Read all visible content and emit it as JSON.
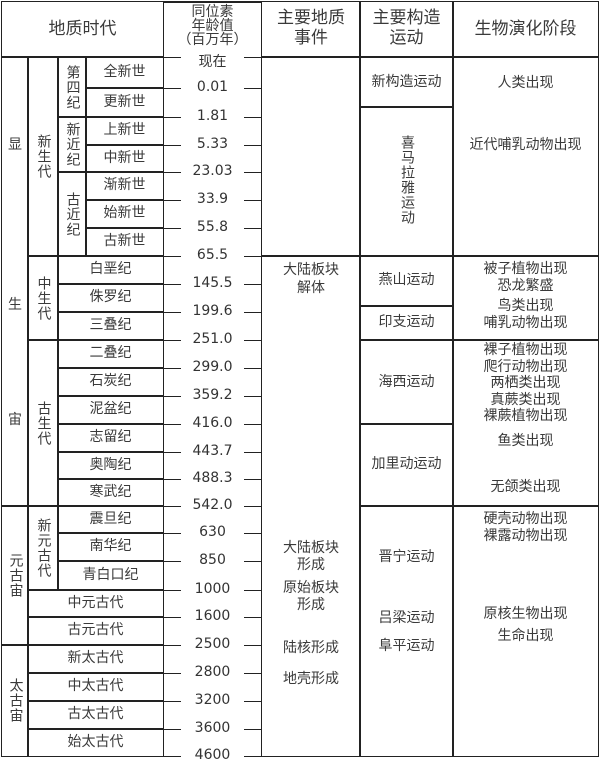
{
  "header": {
    "geologic_time": "地质时代",
    "isotope_age": [
      "同位素",
      "年龄值",
      "（百万年）"
    ],
    "main_events": [
      "主要地质",
      "事件"
    ],
    "tectonic": [
      "主要构造",
      "运动"
    ],
    "biology": "生物演化阶段"
  },
  "eons": [
    "显生宙",
    "元古宙",
    "太古宙"
  ],
  "eras": [
    "新生代",
    "中生代",
    "古生代",
    "新元古代",
    "中元古代",
    "古元古代",
    "新太古代",
    "中太古代",
    "古太古代",
    "始太古代"
  ],
  "subperiods": [
    "第四纪",
    "新近纪",
    "古近纪"
  ],
  "epochs": [
    "全新世",
    "更新世",
    "上新世",
    "中新世",
    "渐新世",
    "始新世",
    "古新世"
  ],
  "periods": [
    "白垩纪",
    "侏罗纪",
    "三叠纪",
    "二叠纪",
    "石炭纪",
    "泥盆纪",
    "志留纪",
    "奥陶纪",
    "寒武纪",
    "震旦纪",
    "南华纪",
    "青白口纪"
  ],
  "ages": [
    "现在",
    "0.01",
    "1.81",
    "5.33",
    "23.03",
    "33.9",
    "55.8",
    "65.5",
    "145.5",
    "199.6",
    "251.0",
    "299.0",
    "359.2",
    "416.0",
    "443.7",
    "488.3",
    "542.0",
    "630",
    "850",
    "1000",
    "1600",
    "2500",
    "2800",
    "3200",
    "3600",
    "4600"
  ],
  "events": [
    "大陆板块",
    "解体",
    "大陆板块",
    "形成",
    "原始板块",
    "形成",
    "陆核形成",
    "地壳形成"
  ],
  "tectonic": [
    "新构造运动",
    "喜马拉雅运动",
    "燕山运动",
    "印支运动",
    "海西运动",
    "加里动运动",
    "晋宁运动",
    "吕梁运动",
    "阜平运动"
  ],
  "biology": [
    "人类出现",
    "近代哺乳动物出现",
    "被子植物出现",
    "恐龙繁盛",
    "鸟类出现",
    "哺乳动物出现",
    "裸子植物出现",
    "爬行动物出现",
    "两栖类出现",
    "真蕨类出现",
    "裸蕨植物出现",
    "鱼类出现",
    "无颌类出现",
    "硬壳动物出现",
    "裸露动物出现",
    "原核生物出现",
    "生命出现"
  ]
}
